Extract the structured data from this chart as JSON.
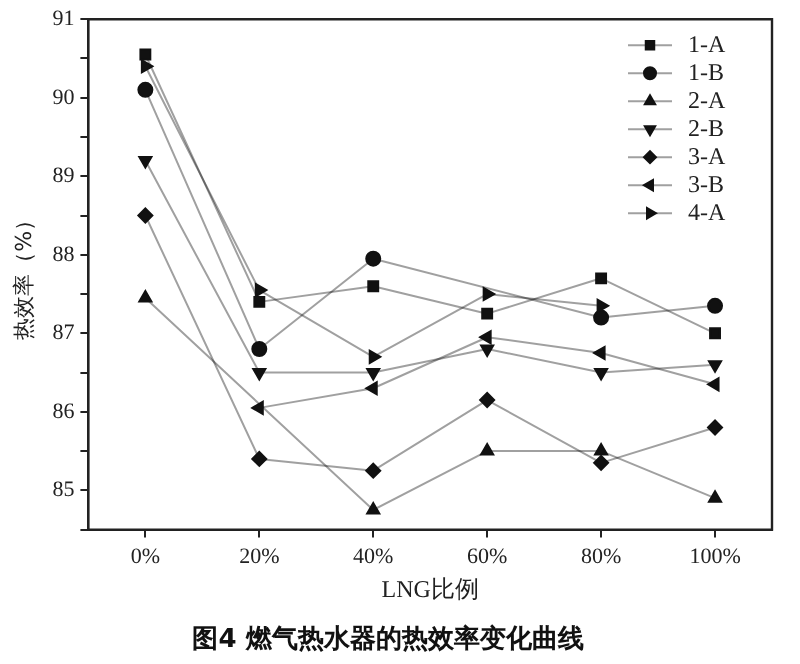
{
  "chart_data": {
    "type": "line",
    "title": "图4 燃气热水器的热效率变化曲线",
    "xlabel": "LNG比例",
    "ylabel": "热效率（%）",
    "categories": [
      "0%",
      "20%",
      "40%",
      "60%",
      "80%",
      "100%"
    ],
    "series": [
      {
        "name": "1-A",
        "color": "#111111",
        "marker": "square",
        "values": [
          90.55,
          87.4,
          87.6,
          87.25,
          87.7,
          87.0
        ]
      },
      {
        "name": "1-B",
        "color": "#111111",
        "marker": "circle",
        "values": [
          90.1,
          86.8,
          87.95,
          null,
          87.2,
          87.35
        ]
      },
      {
        "name": "2-A",
        "color": "#111111",
        "marker": "triangle",
        "values": [
          87.45,
          null,
          84.75,
          85.5,
          85.5,
          84.9
        ]
      },
      {
        "name": "2-B",
        "color": "#111111",
        "marker": "triangle-down",
        "values": [
          89.2,
          86.5,
          86.5,
          86.8,
          86.5,
          86.6
        ]
      },
      {
        "name": "3-A",
        "color": "#111111",
        "marker": "diamond",
        "values": [
          88.5,
          85.4,
          85.25,
          86.15,
          85.35,
          85.8
        ]
      },
      {
        "name": "3-B",
        "color": "#111111",
        "marker": "triangle-left",
        "values": [
          null,
          86.05,
          86.3,
          86.95,
          86.75,
          86.35
        ]
      },
      {
        "name": "4-A",
        "color": "#111111",
        "marker": "triangle-right",
        "values": [
          90.4,
          87.55,
          86.7,
          87.5,
          87.35,
          null
        ]
      }
    ],
    "ylim": [
      84.5,
      91
    ],
    "yticks": [
      {
        "value": 84.5,
        "label": null
      },
      85,
      {
        "value": 85.5,
        "label": null
      },
      86,
      {
        "value": 86.5,
        "label": null
      },
      87,
      {
        "value": 87.5,
        "label": null
      },
      88,
      {
        "value": 88.5,
        "label": null
      },
      89,
      {
        "value": 89.5,
        "label": null
      },
      90,
      {
        "value": 90.5,
        "label": null
      },
      91
    ],
    "grid": false,
    "legend": "top right",
    "line_style": "solid"
  }
}
